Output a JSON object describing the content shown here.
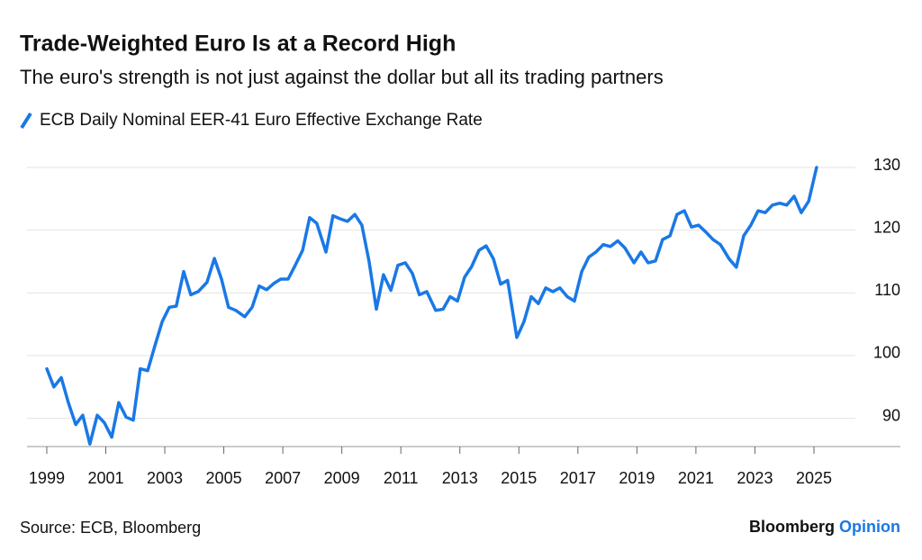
{
  "chart_data": {
    "type": "line",
    "title": "Trade-Weighted Euro Is at a Record High",
    "subtitle": "The euro's strength is not just against the dollar but all its trading partners",
    "source": "Source: ECB, Bloomberg",
    "brand": [
      "Bloomberg",
      "Opinion"
    ],
    "x": [
      1999.0,
      1999.24,
      1999.49,
      1999.73,
      1999.98,
      2000.22,
      2000.46,
      2000.71,
      2000.95,
      2001.2,
      2001.44,
      2001.69,
      2001.93,
      2002.17,
      2002.42,
      2002.66,
      2002.91,
      2003.15,
      2003.39,
      2003.64,
      2003.88,
      2004.13,
      2004.43,
      2004.68,
      2004.92,
      2005.16,
      2005.41,
      2005.71,
      2005.96,
      2006.2,
      2006.45,
      2006.69,
      2006.93,
      2007.18,
      2007.42,
      2007.67,
      2007.91,
      2008.15,
      2008.46,
      2008.7,
      2008.95,
      2009.19,
      2009.44,
      2009.68,
      2009.92,
      2010.17,
      2010.41,
      2010.66,
      2010.9,
      2011.15,
      2011.39,
      2011.63,
      2011.88,
      2012.18,
      2012.43,
      2012.67,
      2012.92,
      2013.16,
      2013.4,
      2013.65,
      2013.89,
      2014.14,
      2014.38,
      2014.62,
      2014.93,
      2015.17,
      2015.42,
      2015.66,
      2015.91,
      2016.15,
      2016.39,
      2016.64,
      2016.88,
      2017.13,
      2017.37,
      2017.61,
      2017.86,
      2018.1,
      2018.35,
      2018.59,
      2018.9,
      2019.14,
      2019.38,
      2019.63,
      2019.87,
      2020.12,
      2020.36,
      2020.61,
      2020.85,
      2021.09,
      2021.34,
      2021.58,
      2021.83,
      2022.13,
      2022.37,
      2022.62,
      2022.86,
      2023.11,
      2023.35,
      2023.59,
      2023.84,
      2024.08,
      2024.33,
      2024.57,
      2024.82,
      2025.09
    ],
    "series": [
      {
        "name": "ECB Daily Nominal EER-41 Euro Effective Exchange Rate",
        "color": "#1a78e6",
        "values": [
          97.9,
          95.0,
          96.5,
          92.5,
          89.0,
          90.5,
          85.9,
          90.5,
          89.3,
          87.0,
          92.5,
          90.2,
          89.7,
          97.9,
          97.6,
          101.5,
          105.4,
          107.7,
          107.9,
          113.4,
          109.7,
          110.2,
          111.7,
          115.5,
          112.2,
          107.7,
          107.2,
          106.2,
          107.7,
          111.1,
          110.5,
          111.5,
          112.2,
          112.2,
          114.4,
          116.8,
          122.0,
          121.1,
          116.5,
          122.3,
          121.8,
          121.4,
          122.5,
          120.8,
          115.1,
          107.4,
          112.9,
          110.4,
          114.4,
          114.8,
          113.1,
          109.7,
          110.2,
          107.2,
          107.4,
          109.4,
          108.7,
          112.5,
          114.2,
          116.8,
          117.5,
          115.4,
          111.4,
          112.0,
          102.9,
          105.4,
          109.4,
          108.3,
          110.8,
          110.2,
          110.8,
          109.4,
          108.7,
          113.4,
          115.7,
          116.5,
          117.7,
          117.4,
          118.3,
          117.2,
          114.8,
          116.5,
          114.8,
          115.1,
          118.5,
          119.1,
          122.5,
          123.1,
          120.5,
          120.8,
          119.7,
          118.5,
          117.7,
          115.4,
          114.1,
          119.1,
          120.8,
          123.1,
          122.8,
          124.0,
          124.3,
          124.0,
          125.4,
          122.8,
          124.6,
          130.0
        ]
      }
    ],
    "xlim": [
      1998.33,
      2027.93
    ],
    "xticks": [
      1999,
      2001,
      2003,
      2005,
      2007,
      2009,
      2011,
      2013,
      2015,
      2017,
      2019,
      2021,
      2023,
      2025
    ],
    "ylim": [
      85.5,
      130
    ],
    "yticks": [
      90,
      100,
      110,
      120,
      130
    ],
    "grid": true
  }
}
